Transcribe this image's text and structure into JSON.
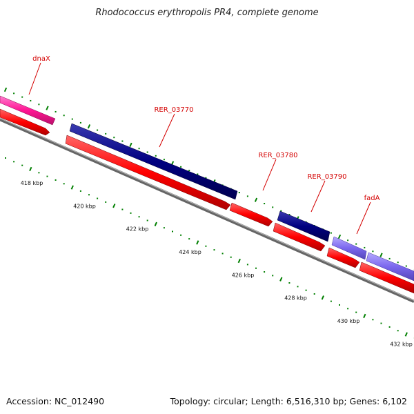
{
  "title": "Rhodococcus erythropolis PR4, complete genome",
  "footer": {
    "accession": "Accession: NC_012490",
    "summary": "Topology: circular; Length: 6,516,310 bp; Genes: 6,102"
  },
  "colors": {
    "pink_gene": "#ff1493",
    "navy_gene": "#000080",
    "violet_gene": "#7b68ee",
    "red_cds": "#ff0000",
    "label_red": "#d40000",
    "tick_green": "#007f00",
    "backbone_gray": "#808080"
  },
  "genes": [
    {
      "label": "dnaX"
    },
    {
      "label": "RER_03770"
    },
    {
      "label": "RER_03780"
    },
    {
      "label": "RER_03790"
    },
    {
      "label": "fadA"
    }
  ],
  "scale": {
    "labels": [
      "418 kbp",
      "420 kbp",
      "422 kbp",
      "424 kbp",
      "426 kbp",
      "428 kbp",
      "430 kbp",
      "432 kbp"
    ]
  }
}
